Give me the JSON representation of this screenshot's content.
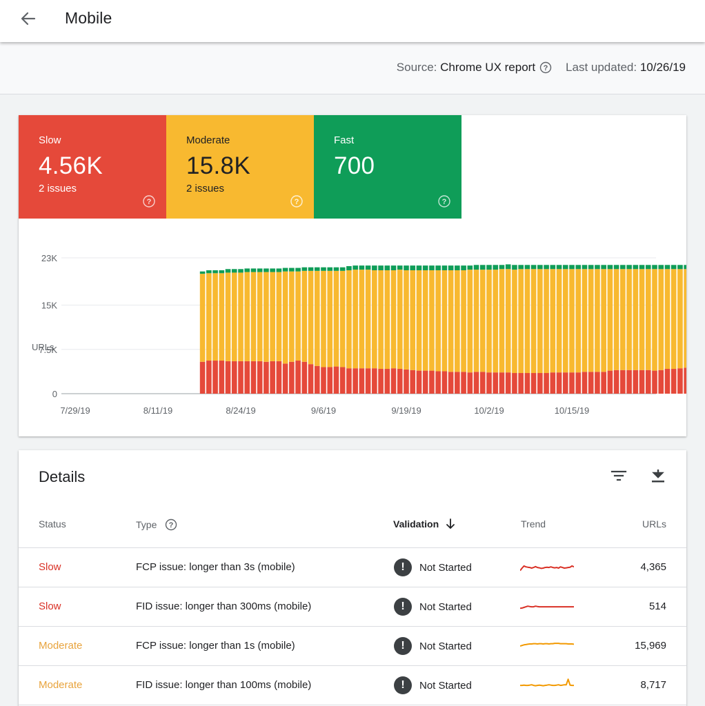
{
  "header": {
    "title": "Mobile"
  },
  "subheader": {
    "source_label": "Source:",
    "source_value": "Chrome UX report",
    "updated_label": "Last updated:",
    "updated_value": "10/26/19"
  },
  "summary": [
    {
      "label": "Slow",
      "value": "4.56K",
      "issues": "2 issues",
      "color": "#e5493a"
    },
    {
      "label": "Moderate",
      "value": "15.8K",
      "issues": "2 issues",
      "color": "#f8b930"
    },
    {
      "label": "Fast",
      "value": "700",
      "issues": "",
      "color": "#0f9d58"
    }
  ],
  "chart_data": {
    "type": "bar",
    "stacked": true,
    "ylabel": "URLs",
    "yticks": [
      "0",
      "7.5K",
      "15K",
      "23K"
    ],
    "ylim": [
      0,
      23000
    ],
    "xtick_labels": [
      "7/29/19",
      "8/11/19",
      "8/24/19",
      "9/6/19",
      "9/19/19",
      "10/2/19",
      "10/15/19"
    ],
    "x_range": [
      "7/29/19",
      "10/25/19"
    ],
    "first_data_date": "8/18/19",
    "grid": true,
    "series": [
      {
        "name": "Slow",
        "color": "#e5493a",
        "values": [
          5400,
          5600,
          5600,
          5600,
          5500,
          5500,
          5500,
          5500,
          5500,
          5500,
          5400,
          5500,
          5500,
          5100,
          5400,
          5600,
          5400,
          5000,
          4700,
          4500,
          4500,
          4600,
          4500,
          4300,
          4300,
          4300,
          4300,
          4300,
          4200,
          4200,
          4300,
          4200,
          4100,
          4000,
          3900,
          3900,
          3900,
          3800,
          3800,
          3700,
          3700,
          3700,
          3600,
          3700,
          3700,
          3600,
          3600,
          3600,
          3600,
          3500,
          3500,
          3500,
          3500,
          3500,
          3500,
          3600,
          3600,
          3600,
          3600,
          3600,
          3700,
          3700,
          3700,
          3700,
          3900,
          4000,
          4000,
          4000,
          4000,
          4000,
          4000,
          3900,
          4000,
          4200,
          4200,
          4300,
          4400,
          4400,
          4400,
          5300,
          4700,
          4800
        ]
      },
      {
        "name": "Moderate",
        "color": "#f8b930",
        "values": [
          14900,
          14800,
          14800,
          14800,
          15000,
          15000,
          15000,
          15100,
          15100,
          15100,
          15200,
          15100,
          15100,
          15600,
          15300,
          15100,
          15400,
          15800,
          16100,
          16300,
          16300,
          16200,
          16300,
          16600,
          16700,
          16700,
          16700,
          16600,
          16700,
          16700,
          16600,
          16800,
          16800,
          16900,
          17000,
          17000,
          17000,
          17100,
          17100,
          17200,
          17200,
          17200,
          17400,
          17300,
          17300,
          17400,
          17400,
          17500,
          17500,
          17500,
          17600,
          17600,
          17600,
          17600,
          17600,
          17500,
          17500,
          17500,
          17500,
          17500,
          17400,
          17400,
          17400,
          17400,
          17200,
          17100,
          17100,
          17100,
          17100,
          17100,
          17100,
          17200,
          17100,
          16900,
          16900,
          16800,
          16700,
          16700,
          16700,
          15800,
          16500,
          16400
        ]
      },
      {
        "name": "Fast",
        "color": "#0f9d58",
        "values": [
          400,
          500,
          500,
          500,
          600,
          600,
          600,
          600,
          600,
          600,
          600,
          600,
          600,
          600,
          600,
          600,
          600,
          600,
          600,
          600,
          600,
          600,
          600,
          700,
          700,
          700,
          700,
          800,
          800,
          800,
          800,
          700,
          800,
          800,
          800,
          800,
          800,
          800,
          800,
          800,
          800,
          800,
          700,
          800,
          800,
          800,
          800,
          700,
          800,
          800,
          700,
          700,
          700,
          700,
          700,
          700,
          700,
          700,
          700,
          700,
          700,
          700,
          700,
          700,
          700,
          700,
          700,
          700,
          700,
          700,
          700,
          700,
          700,
          700,
          700,
          700,
          700,
          700,
          700,
          700,
          700,
          700
        ]
      }
    ]
  },
  "details": {
    "title": "Details",
    "columns": {
      "status": "Status",
      "type": "Type",
      "validation": "Validation",
      "trend": "Trend",
      "urls": "URLs"
    },
    "rows": [
      {
        "status": "Slow",
        "type": "FCP issue: longer than 3s (mobile)",
        "validation": "Not Started",
        "urls": "4,365",
        "trend_color": "#d93025",
        "trend": [
          40,
          48,
          55,
          52,
          51,
          50,
          48,
          50,
          53,
          50,
          49,
          47,
          48,
          50,
          51,
          50,
          52,
          50,
          49,
          50,
          48,
          52,
          50,
          48,
          49,
          50,
          51,
          55,
          52
        ]
      },
      {
        "status": "Slow",
        "type": "FID issue: longer than 300ms (mobile)",
        "validation": "Not Started",
        "urls": "514",
        "trend_color": "#d93025",
        "trend": [
          45,
          46,
          48,
          50,
          52,
          51,
          50,
          50,
          52,
          51,
          50,
          50,
          50,
          50,
          50,
          50,
          50,
          50,
          50,
          50,
          50,
          50,
          50,
          50,
          50,
          50,
          50,
          50,
          50
        ]
      },
      {
        "status": "Moderate",
        "type": "FCP issue: longer than 1s (mobile)",
        "validation": "Not Started",
        "urls": "15,969",
        "trend_color": "#f29900",
        "trend": [
          50,
          52,
          54,
          55,
          56,
          57,
          57,
          58,
          58,
          57,
          58,
          58,
          57,
          58,
          58,
          57,
          58,
          58,
          59,
          59,
          59,
          58,
          58,
          58,
          58,
          57,
          57,
          57,
          56
        ]
      },
      {
        "status": "Moderate",
        "type": "FID issue: longer than 100ms (mobile)",
        "validation": "Not Started",
        "urls": "8,717",
        "trend_color": "#f29900",
        "trend": [
          50,
          50,
          51,
          50,
          50,
          51,
          52,
          50,
          49,
          50,
          51,
          50,
          49,
          50,
          51,
          52,
          51,
          50,
          50,
          51,
          52,
          50,
          51,
          52,
          52,
          70,
          51,
          50,
          50
        ]
      }
    ]
  }
}
